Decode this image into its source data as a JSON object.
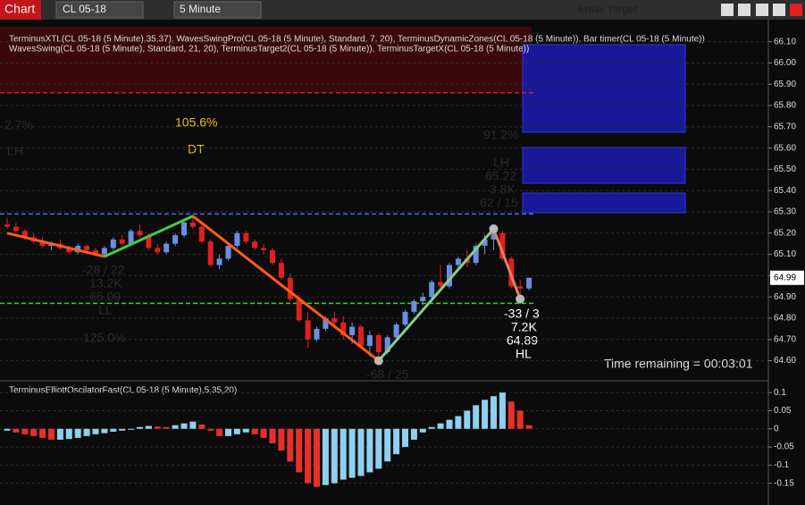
{
  "toolbar": {
    "chart": "Chart",
    "instrument": "CL 05-18",
    "interval": "5 Minute",
    "erase": "Erase Target"
  },
  "indicators": [
    "TerminusXTL(CL 05-18 (5 Minute),35,37), WavesSwingPro(CL 05-18 (5 Minute), Standard, 7, 20), TerminusDynamicZones(CL 05-18 (5 Minute)), Bar timer(CL 05-18 (5 Minute))",
    "WavesSwing(CL 05-18 (5 Minute), Standard, 21, 20), TerminusTarget2(CL 05-18 (5 Minute)), TerminusTargetX(CL 05-18 (5 Minute))"
  ],
  "annotations": [
    "2.7%",
    "LH",
    "105.6%",
    "DT",
    "-28 / 22",
    "13.2K",
    "65.09",
    "LL",
    "125.0%",
    "-68 / 25",
    "91.2%",
    "LH",
    "65.22",
    "3.8K",
    "62 / 15",
    "-33 / 3",
    "7.2K",
    "64.89",
    "HL",
    "Time remaining = 00:03:01"
  ],
  "chart_data": [
    {
      "type": "candlestick",
      "up_color": "#6a8fe0",
      "down_color": "#e02020",
      "open": [
        65.24,
        65.23,
        65.21,
        65.18,
        65.16,
        65.14,
        65.15,
        65.13,
        65.11,
        65.14,
        65.12,
        65.1,
        65.13,
        65.17,
        65.15,
        65.21,
        65.19,
        65.13,
        65.11,
        65.15,
        65.19,
        65.25,
        65.23,
        65.16,
        65.05,
        65.08,
        65.14,
        65.2,
        65.16,
        65.13,
        65.12,
        65.06,
        64.99,
        64.89,
        64.79,
        64.7,
        64.75,
        64.8,
        64.78,
        64.72,
        64.76,
        64.67,
        64.72,
        64.64,
        64.71,
        64.77,
        64.83,
        64.88,
        64.9,
        64.97,
        64.95,
        65.05,
        65.08,
        65.06,
        65.14,
        65.17,
        65.2,
        65.08,
        64.95,
        64.94
      ],
      "high": [
        65.27,
        65.25,
        65.22,
        65.2,
        65.18,
        65.16,
        65.17,
        65.14,
        65.15,
        65.15,
        65.13,
        65.14,
        65.18,
        65.19,
        65.22,
        65.24,
        65.2,
        65.15,
        65.16,
        65.2,
        65.26,
        65.29,
        65.24,
        65.17,
        65.1,
        65.15,
        65.21,
        65.21,
        65.17,
        65.15,
        65.13,
        65.08,
        65.01,
        64.91,
        64.83,
        64.76,
        64.81,
        64.83,
        64.81,
        64.78,
        64.77,
        64.74,
        64.73,
        64.72,
        64.78,
        64.84,
        64.89,
        64.92,
        64.98,
        65.05,
        65.06,
        65.09,
        65.12,
        65.15,
        65.19,
        65.22,
        65.21,
        65.09,
        64.98,
        64.99
      ],
      "low": [
        65.22,
        65.2,
        65.17,
        65.15,
        65.13,
        65.12,
        65.12,
        65.1,
        65.1,
        65.11,
        65.09,
        65.09,
        65.12,
        65.14,
        65.14,
        65.18,
        65.12,
        65.1,
        65.1,
        65.14,
        65.18,
        65.22,
        65.15,
        65.04,
        65.03,
        65.07,
        65.13,
        65.15,
        65.12,
        65.1,
        65.05,
        64.98,
        64.88,
        64.78,
        64.66,
        64.69,
        64.74,
        64.76,
        64.7,
        64.68,
        64.66,
        64.62,
        64.6,
        64.63,
        64.7,
        64.76,
        64.82,
        64.86,
        64.89,
        64.93,
        64.94,
        65.03,
        65.04,
        65.05,
        65.1,
        65.12,
        65.07,
        64.94,
        64.89,
        64.93
      ],
      "close": [
        65.23,
        65.21,
        65.18,
        65.16,
        65.14,
        65.15,
        65.13,
        65.11,
        65.14,
        65.12,
        65.1,
        65.13,
        65.17,
        65.15,
        65.21,
        65.19,
        65.13,
        65.11,
        65.15,
        65.19,
        65.25,
        65.23,
        65.16,
        65.05,
        65.08,
        65.14,
        65.2,
        65.16,
        65.13,
        65.12,
        65.06,
        64.99,
        64.89,
        64.79,
        64.7,
        64.75,
        64.8,
        64.78,
        64.72,
        64.76,
        64.67,
        64.72,
        64.64,
        64.71,
        64.77,
        64.83,
        64.88,
        64.9,
        64.97,
        64.95,
        65.05,
        65.08,
        65.06,
        65.14,
        65.17,
        65.2,
        65.08,
        64.95,
        64.94,
        64.99
      ],
      "swing": {
        "x": [
          0,
          11,
          21,
          42,
          55,
          58
        ],
        "values": [
          65.2,
          65.09,
          65.28,
          64.6,
          65.22,
          64.89
        ],
        "segment_colors": [
          "#ff5a1a",
          "#44cc44",
          "#ff5a1a",
          "#88cc88",
          "#e08060"
        ]
      },
      "levels": [
        {
          "value": 64.87,
          "color": "#22dd22"
        },
        {
          "value": 65.86,
          "color": "#cc2222"
        },
        {
          "value": 65.29,
          "color": "#4a6fd8"
        }
      ],
      "price_marker": {
        "value": 64.99,
        "label": "64.99"
      },
      "ylim": [
        64.51,
        66.17
      ],
      "yticks": [
        {
          "value": 66.1,
          "label": "66.10"
        },
        {
          "value": 66.0,
          "label": "66.00"
        },
        {
          "value": 65.9,
          "label": "65.90"
        },
        {
          "value": 65.8,
          "label": "65.80"
        },
        {
          "value": 65.7,
          "label": "65.70"
        },
        {
          "value": 65.6,
          "label": "65.60"
        },
        {
          "value": 65.5,
          "label": "65.50"
        },
        {
          "value": 65.4,
          "label": "65.40"
        },
        {
          "value": 65.3,
          "label": "65.30"
        },
        {
          "value": 65.2,
          "label": "65.20"
        },
        {
          "value": 65.1,
          "label": "65.10"
        },
        {
          "value": 65.0,
          "label": "65.00"
        },
        {
          "value": 64.9,
          "label": "64.90"
        },
        {
          "value": 64.8,
          "label": "64.80"
        },
        {
          "value": 64.7,
          "label": "64.70"
        },
        {
          "value": 64.6,
          "label": "64.60"
        }
      ],
      "grid": true
    },
    {
      "type": "bar",
      "title": "TerminusElliottOscilatorFast(CL 05-18 (5 Minute),5,35,20)",
      "rising_color": "#8ed0f0",
      "falling_color": "#e8302a",
      "values": [
        -0.005,
        -0.01,
        -0.015,
        -0.02,
        -0.025,
        -0.03,
        -0.03,
        -0.028,
        -0.025,
        -0.02,
        -0.015,
        -0.012,
        -0.008,
        -0.005,
        0,
        0.005,
        0.008,
        0.006,
        0.005,
        0.01,
        0.015,
        0.02,
        0.012,
        -0.005,
        -0.02,
        -0.02,
        -0.015,
        -0.01,
        -0.015,
        -0.025,
        -0.04,
        -0.06,
        -0.09,
        -0.12,
        -0.15,
        -0.16,
        -0.155,
        -0.15,
        -0.14,
        -0.135,
        -0.13,
        -0.12,
        -0.11,
        -0.09,
        -0.07,
        -0.05,
        -0.03,
        -0.01,
        0.005,
        0.015,
        0.025,
        0.035,
        0.05,
        0.065,
        0.08,
        0.09,
        0.1,
        0.075,
        0.05,
        0.01
      ],
      "ylim": [
        -0.21,
        0.13
      ],
      "yticks": [
        0.1,
        0.05,
        0,
        -0.05,
        -0.1,
        -0.15
      ],
      "grid": true
    }
  ]
}
